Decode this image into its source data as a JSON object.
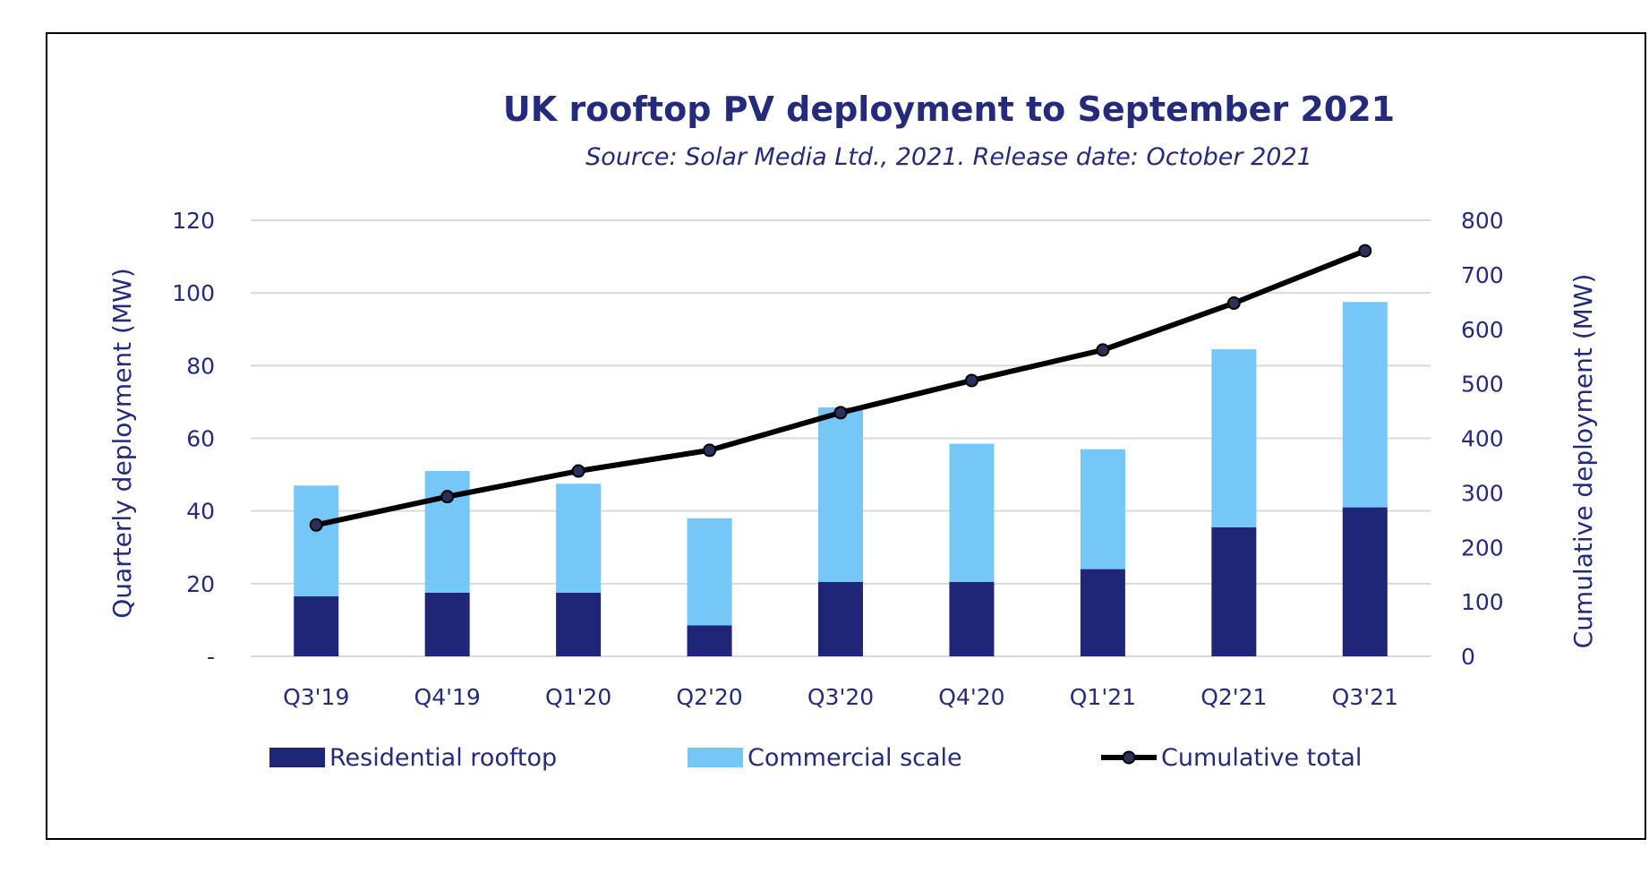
{
  "chart_data": {
    "type": "bar",
    "stacked": true,
    "title": "UK rooftop PV deployment to September 2021",
    "subtitle": "Source: Solar Media Ltd., 2021. Release date: October 2021",
    "ylabel": "Quarterly deployment (MW)",
    "y2label": "Cumulative deployment (MW)",
    "categories": [
      "Q3'19",
      "Q4'19",
      "Q1'20",
      "Q2'20",
      "Q3'20",
      "Q4'20",
      "Q1'21",
      "Q2'21",
      "Q3'21"
    ],
    "ylim": [
      0,
      120
    ],
    "y2lim": [
      0,
      800
    ],
    "y_ticks": [
      "-",
      "20",
      "40",
      "60",
      "80",
      "100",
      "120"
    ],
    "y2_ticks": [
      "0",
      "100",
      "200",
      "300",
      "400",
      "500",
      "600",
      "700",
      "800"
    ],
    "grid": true,
    "legend_position": "bottom",
    "series": [
      {
        "name": "Residential rooftop",
        "type": "bar",
        "axis": "left",
        "color": "#1f2677",
        "values": [
          16.5,
          17.5,
          17.5,
          8.5,
          20.5,
          20.5,
          24,
          35.5,
          41
        ]
      },
      {
        "name": "Commercial scale",
        "type": "bar",
        "axis": "left",
        "color": "#75c7f8",
        "values": [
          30.5,
          33.5,
          30,
          29.5,
          48,
          38,
          33,
          49,
          56.5
        ]
      },
      {
        "name": "Cumulative total",
        "type": "line",
        "axis": "right",
        "color": "#000000",
        "values": [
          241,
          293,
          340,
          378,
          447,
          506,
          562,
          648,
          744
        ]
      }
    ],
    "colors": {
      "text": "#252b7c",
      "grid": "#d9d9d9",
      "marker_fill": "#2b2f5c",
      "frame": "#000000"
    }
  }
}
